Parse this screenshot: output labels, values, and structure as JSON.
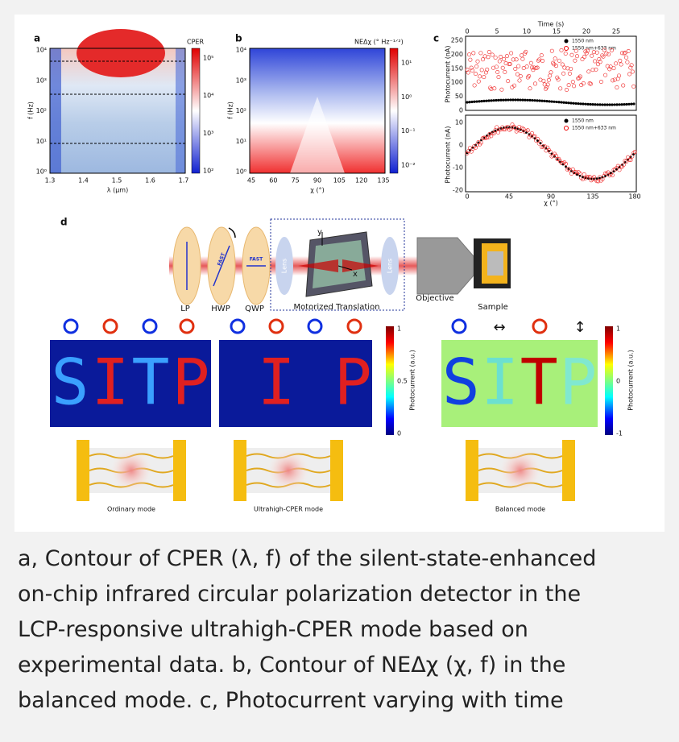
{
  "figure": {
    "panel_a": {
      "label": "a",
      "colorbar_title": "CPER",
      "x_label": "λ (μm)",
      "y_label": "f (Hz)",
      "x_ticks": [
        "1.3",
        "1.4",
        "1.5",
        "1.6",
        "1.7"
      ],
      "y_ticks": [
        "10⁴",
        "10³",
        "10²",
        "10¹",
        "10⁰"
      ],
      "colorbar_ticks": [
        "10⁵",
        "10⁴",
        "10³",
        "10²"
      ]
    },
    "panel_b": {
      "label": "b",
      "colorbar_title": "NEΔχ (° Hz⁻¹ᐟ²)",
      "x_label": "χ (°)",
      "y_label": "f (Hz)",
      "x_ticks": [
        "45",
        "60",
        "75",
        "90",
        "105",
        "120",
        "135"
      ],
      "y_ticks": [
        "10⁴",
        "10³",
        "10²",
        "10¹",
        "10⁰"
      ],
      "colorbar_ticks": [
        "10¹",
        "10⁰",
        "10⁻¹",
        "10⁻²"
      ]
    },
    "panel_c": {
      "label": "c",
      "top_axis_label": "Time (s)",
      "top_ticks": [
        "0",
        "5",
        "10",
        "15",
        "20",
        "25"
      ],
      "upper": {
        "y_label": "Photocurrent (nA)",
        "y_ticks": [
          "250",
          "200",
          "150",
          "100",
          "50",
          "0"
        ],
        "legend": [
          "1550 nm",
          "1550 nm+633 nm"
        ]
      },
      "lower": {
        "y_label": "Photocurrent (nA)",
        "y_ticks": [
          "10",
          "0",
          "-10",
          "-20"
        ],
        "legend": [
          "1550 nm",
          "1550 nm+633 nm"
        ],
        "x_label": "χ (°)",
        "x_ticks": [
          "0",
          "45",
          "90",
          "135",
          "180"
        ]
      }
    },
    "panel_d": {
      "label": "d",
      "components": [
        "LP",
        "HWP",
        "QWP",
        "Motorized Translation",
        "Objective",
        "Sample"
      ],
      "lens_labels": [
        "Lens",
        "Lens"
      ],
      "fast_labels": [
        "FAST",
        "FAST"
      ],
      "axis_labels": [
        "y",
        "x"
      ],
      "colorbar_left": {
        "title": "Photocurrent (a.u.)",
        "ticks": [
          "1",
          "0.5",
          "0"
        ]
      },
      "colorbar_right": {
        "title": "Photocurrent (a.u.)",
        "ticks": [
          "1",
          "0",
          "-1"
        ]
      },
      "letters": [
        "S",
        "I",
        "T",
        "P"
      ],
      "modes": [
        "Ordinary mode",
        "Ultrahigh-CPER mode",
        "Balanced mode"
      ]
    }
  },
  "caption": [
    "a, Contour of CPER (λ, f) of the silent-state-enhanced",
    "on-chip infrared circular polarization detector in the",
    "LCP-responsive ultrahigh-CPER mode based on",
    "experimental data. b, Contour of NEΔχ (χ, f) in the",
    "balanced mode. c, Photocurrent varying with time"
  ]
}
